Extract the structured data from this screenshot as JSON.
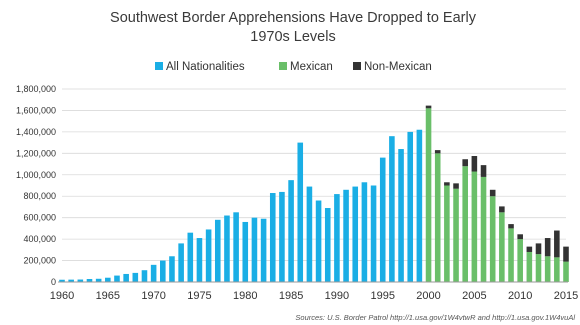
{
  "chart_data": {
    "type": "bar",
    "title_line1": "Southwest Border Apprehensions Have Dropped to Early",
    "title_line2": "1970s Levels",
    "xlabel": "",
    "ylabel": "",
    "ylim": [
      0,
      1800000
    ],
    "yticks": [
      0,
      200000,
      400000,
      600000,
      800000,
      1000000,
      1200000,
      1400000,
      1600000,
      1800000
    ],
    "ytick_labels": [
      "0",
      "200,000",
      "400,000",
      "600,000",
      "800,000",
      "1,000,000",
      "1,200,000",
      "1,400,000",
      "1,600,000",
      "1,800,000"
    ],
    "xticks": [
      "1960",
      "1965",
      "1970",
      "1975",
      "1980",
      "1985",
      "1990",
      "1995",
      "2000",
      "2005",
      "2010",
      "2015"
    ],
    "grid": true,
    "legend_position": "top",
    "colors": {
      "all": "#1aaee5",
      "mexican": "#6abf69",
      "non_mexican": "#333333"
    },
    "series": [
      {
        "name": "All Nationalities",
        "x": [
          1960,
          1961,
          1962,
          1963,
          1964,
          1965,
          1966,
          1967,
          1968,
          1969,
          1970,
          1971,
          1972,
          1973,
          1974,
          1975,
          1976,
          1977,
          1978,
          1979,
          1980,
          1981,
          1982,
          1983,
          1984,
          1985,
          1986,
          1987,
          1988,
          1989,
          1990,
          1991,
          1992,
          1993,
          1994,
          1995,
          1996,
          1997,
          1998,
          1999
        ],
        "values": [
          21000,
          22000,
          23000,
          28000,
          30000,
          40000,
          60000,
          75000,
          85000,
          110000,
          160000,
          200000,
          240000,
          360000,
          460000,
          410000,
          490000,
          580000,
          620000,
          650000,
          560000,
          600000,
          590000,
          830000,
          840000,
          950000,
          1300000,
          890000,
          760000,
          690000,
          820000,
          860000,
          890000,
          930000,
          900000,
          1160000,
          1360000,
          1240000,
          1400000,
          1420000
        ]
      },
      {
        "name": "Mexican",
        "x": [
          2000,
          2001,
          2002,
          2003,
          2004,
          2005,
          2006,
          2007,
          2008,
          2009,
          2010,
          2011,
          2012,
          2013,
          2014,
          2015
        ],
        "values": [
          1620000,
          1200000,
          900000,
          870000,
          1080000,
          1030000,
          980000,
          800000,
          650000,
          500000,
          400000,
          280000,
          260000,
          240000,
          230000,
          190000
        ]
      },
      {
        "name": "Non-Mexican",
        "x": [
          2000,
          2001,
          2002,
          2003,
          2004,
          2005,
          2006,
          2007,
          2008,
          2009,
          2010,
          2011,
          2012,
          2013,
          2014,
          2015
        ],
        "values": [
          25000,
          30000,
          30000,
          50000,
          65000,
          145000,
          110000,
          60000,
          55000,
          40000,
          45000,
          50000,
          100000,
          170000,
          250000,
          140000
        ]
      }
    ],
    "source": "Sources: U.S. Border Patrol http://1.usa.gov/1W4vtwR and http://1.usa.gov.1W4vuAl"
  }
}
